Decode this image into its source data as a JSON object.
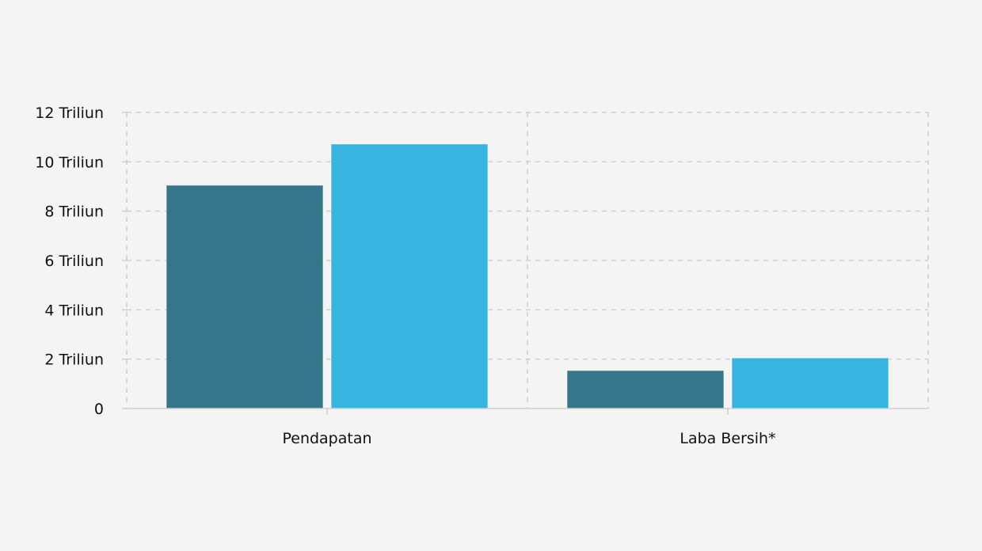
{
  "chart_data": {
    "type": "bar",
    "title": "",
    "xlabel": "",
    "ylabel": "",
    "categories": [
      "Pendapatan",
      "Laba Bersih*"
    ],
    "series": [
      {
        "name": "Series 1",
        "color": "#2f7287",
        "values": [
          9.05,
          1.54
        ]
      },
      {
        "name": "Series 2",
        "color": "#31b2df",
        "values": [
          10.72,
          2.05
        ]
      }
    ],
    "ylim": [
      0,
      12
    ],
    "yticks": [
      0,
      2,
      4,
      6,
      8,
      10,
      12
    ],
    "ytick_labels": [
      "0",
      "2 Triliun",
      "4 Triliun",
      "6 Triliun",
      "8 Triliun",
      "10 Triliun",
      "12 Triliun"
    ],
    "grid": true,
    "legend": "none"
  }
}
